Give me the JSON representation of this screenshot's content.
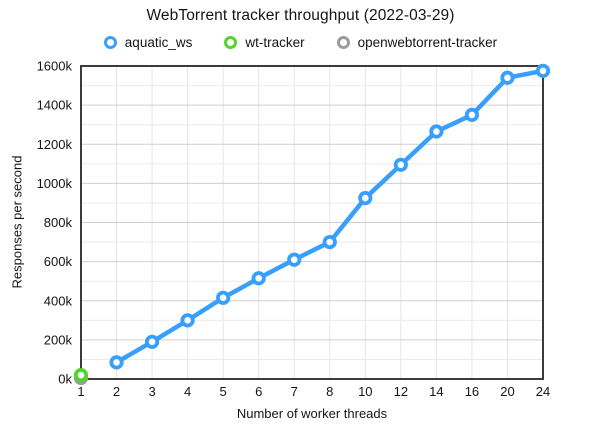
{
  "chart_data": {
    "type": "line",
    "title": "WebTorrent tracker throughput (2022-03-29)",
    "xlabel": "Number of worker threads",
    "ylabel": "Responses per second",
    "categories": [
      "1",
      "2",
      "3",
      "4",
      "5",
      "6",
      "7",
      "8",
      "10",
      "12",
      "14",
      "16",
      "20",
      "24"
    ],
    "x_axis_type": "categorical",
    "ylim": [
      0,
      1600
    ],
    "y_unit": "k (thousands of responses per second)",
    "y_ticks": [
      "0k",
      "200k",
      "400k",
      "600k",
      "800k",
      "1000k",
      "1200k",
      "1400k",
      "1600k"
    ],
    "y_tick_step": 200,
    "y_minor_grid_step": 100,
    "grid": true,
    "legend_position": "top",
    "series": [
      {
        "name": "aquatic_ws",
        "color": "#38a0fc",
        "points": [
          [
            "2",
            85
          ],
          [
            "3",
            190
          ],
          [
            "4",
            300
          ],
          [
            "5",
            415
          ],
          [
            "6",
            515
          ],
          [
            "7",
            610
          ],
          [
            "8",
            700
          ],
          [
            "10",
            925
          ],
          [
            "12",
            1095
          ],
          [
            "14",
            1265
          ],
          [
            "16",
            1350
          ],
          [
            "20",
            1540
          ],
          [
            "24",
            1575
          ]
        ]
      },
      {
        "name": "wt-tracker",
        "color": "#4fd52c",
        "points": [
          [
            "1",
            20
          ]
        ]
      },
      {
        "name": "openwebtorrent-tracker",
        "color": "#9b9b9b",
        "points": [
          [
            "1",
            5
          ]
        ]
      }
    ],
    "colors": {
      "frame": "#3b3b3b",
      "major_grid": "#cfcfcf",
      "minor_grid": "#ebebeb",
      "vertical_grid": "#e4e4e4",
      "marker_fill": "#ffffff",
      "text": "#151515"
    }
  }
}
